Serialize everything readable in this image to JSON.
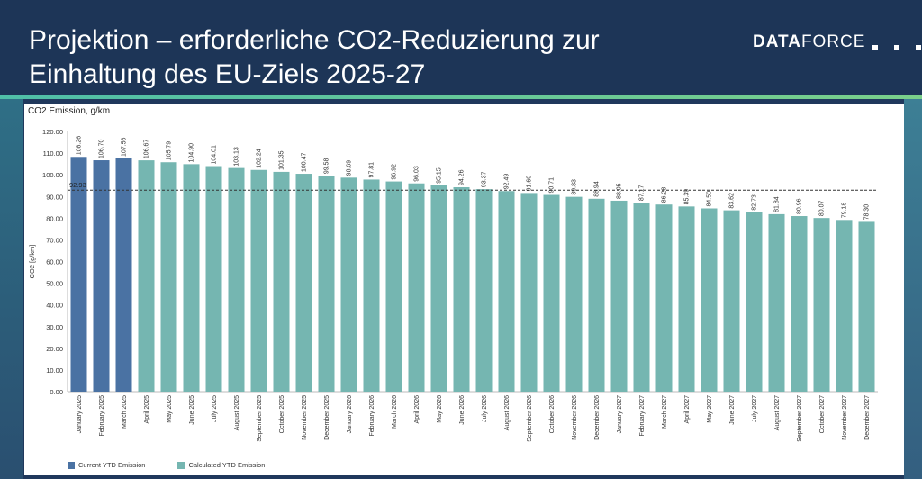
{
  "header": {
    "title_line1": "Projektion – erforderliche CO2-Reduzierung zur",
    "title_line2": "Einhaltung des EU-Ziels 2025-27",
    "logo_bold": "DATA",
    "logo_thin": "FORCE"
  },
  "colors": {
    "current": "#4a72a3",
    "calculated": "#75b6b1",
    "target_line": "#333333"
  },
  "chart_data": {
    "type": "bar",
    "title": "CO2 Emission, g/km",
    "ylabel": "CO2 [g/km]",
    "xlabel": "",
    "ylim": [
      0,
      120
    ],
    "yticks": [
      "0.00",
      "10.00",
      "20.00",
      "30.00",
      "40.00",
      "50.00",
      "60.00",
      "70.00",
      "80.00",
      "90.00",
      "100.00",
      "110.00",
      "120.00"
    ],
    "grid": false,
    "legend_position": "bottom-left",
    "target": {
      "value": 92.93,
      "label": "92.93"
    },
    "categories": [
      "January 2025",
      "February 2025",
      "March 2025",
      "April 2025",
      "May 2025",
      "June 2025",
      "July 2025",
      "August 2025",
      "September 2025",
      "October 2025",
      "November 2025",
      "December 2025",
      "January 2026",
      "February 2026",
      "March 2026",
      "April 2026",
      "May 2026",
      "June 2026",
      "July 2026",
      "August 2026",
      "September 2026",
      "October 2026",
      "November 2026",
      "December 2026",
      "January 2027",
      "February 2027",
      "March 2027",
      "April 2027",
      "May 2027",
      "June 2027",
      "July 2027",
      "August 2027",
      "September 2027",
      "October 2027",
      "November 2027",
      "December 2027"
    ],
    "values": [
      108.26,
      106.7,
      107.56,
      106.67,
      105.79,
      104.9,
      104.01,
      103.13,
      102.24,
      101.35,
      100.47,
      99.58,
      98.69,
      97.81,
      96.92,
      96.03,
      95.15,
      94.26,
      93.37,
      92.49,
      91.6,
      90.71,
      89.83,
      88.94,
      88.05,
      87.17,
      86.28,
      85.39,
      84.5,
      83.62,
      82.73,
      81.84,
      80.96,
      80.07,
      79.18,
      78.3
    ],
    "value_labels": [
      "108.26",
      "106.70",
      "107.56",
      "106.67",
      "105.79",
      "104.90",
      "104.01",
      "103.13",
      "102.24",
      "101.35",
      "100.47",
      "99.58",
      "98.69",
      "97.81",
      "96.92",
      "96.03",
      "95.15",
      "94.26",
      "93.37",
      "92.49",
      "91.60",
      "90.71",
      "89.83",
      "88.94",
      "88.05",
      "87.17",
      "86.28",
      "85.39",
      "84.50",
      "83.62",
      "82.73",
      "81.84",
      "80.96",
      "80.07",
      "79.18",
      "78.30"
    ],
    "bar_type": [
      "current",
      "current",
      "current",
      "calculated",
      "calculated",
      "calculated",
      "calculated",
      "calculated",
      "calculated",
      "calculated",
      "calculated",
      "calculated",
      "calculated",
      "calculated",
      "calculated",
      "calculated",
      "calculated",
      "calculated",
      "calculated",
      "calculated",
      "calculated",
      "calculated",
      "calculated",
      "calculated",
      "calculated",
      "calculated",
      "calculated",
      "calculated",
      "calculated",
      "calculated",
      "calculated",
      "calculated",
      "calculated",
      "calculated",
      "calculated",
      "calculated"
    ],
    "series": [
      {
        "name": "Current YTD Emission"
      },
      {
        "name": "Calculated YTD Emission"
      }
    ]
  }
}
